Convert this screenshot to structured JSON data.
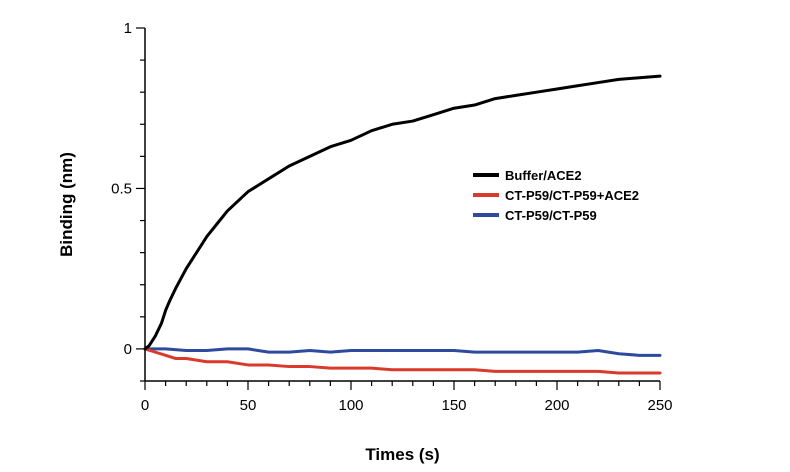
{
  "chart_data": {
    "type": "line",
    "title": "",
    "xlabel": "Times (s)",
    "ylabel": "Binding (nm)",
    "xlim": [
      0,
      250
    ],
    "ylim": [
      -0.1,
      1
    ],
    "x_ticks": [
      0,
      50,
      100,
      150,
      200,
      250
    ],
    "x_tick_labels": [
      "0",
      "50",
      "100",
      "150",
      "200",
      "250"
    ],
    "y_ticks": [
      0,
      0.5,
      1
    ],
    "y_tick_labels": [
      "0",
      "0.5",
      "1"
    ],
    "y_minor_step": 0.1,
    "x_minor_step": 10,
    "grid": false,
    "legend_position": "right",
    "series": [
      {
        "name": "Buffer/ACE2",
        "color": "#000000",
        "x": [
          0,
          2,
          5,
          8,
          10,
          12,
          15,
          20,
          25,
          30,
          35,
          40,
          45,
          50,
          55,
          60,
          70,
          80,
          90,
          100,
          110,
          120,
          130,
          140,
          150,
          160,
          170,
          180,
          190,
          200,
          210,
          220,
          230,
          240,
          250
        ],
        "values": [
          0,
          0.01,
          0.04,
          0.08,
          0.12,
          0.15,
          0.19,
          0.25,
          0.3,
          0.35,
          0.39,
          0.43,
          0.46,
          0.49,
          0.51,
          0.53,
          0.57,
          0.6,
          0.63,
          0.65,
          0.68,
          0.7,
          0.71,
          0.73,
          0.75,
          0.76,
          0.78,
          0.79,
          0.8,
          0.81,
          0.82,
          0.83,
          0.84,
          0.845,
          0.85
        ]
      },
      {
        "name": "CT-P59/CT-P59+ACE2",
        "color": "#d93a2b",
        "x": [
          0,
          5,
          10,
          15,
          20,
          30,
          40,
          50,
          60,
          70,
          80,
          90,
          100,
          110,
          120,
          130,
          140,
          150,
          160,
          170,
          180,
          190,
          200,
          210,
          220,
          230,
          240,
          250
        ],
        "values": [
          0,
          -0.01,
          -0.02,
          -0.03,
          -0.03,
          -0.04,
          -0.04,
          -0.05,
          -0.05,
          -0.055,
          -0.055,
          -0.06,
          -0.06,
          -0.06,
          -0.065,
          -0.065,
          -0.065,
          -0.065,
          -0.065,
          -0.07,
          -0.07,
          -0.07,
          -0.07,
          -0.07,
          -0.07,
          -0.075,
          -0.075,
          -0.075
        ]
      },
      {
        "name": "CT-P59/CT-P59",
        "color": "#2e4a9e",
        "x": [
          0,
          5,
          10,
          20,
          30,
          40,
          50,
          60,
          70,
          80,
          90,
          100,
          110,
          120,
          130,
          140,
          150,
          160,
          170,
          180,
          190,
          200,
          210,
          220,
          230,
          240,
          250
        ],
        "values": [
          0,
          0,
          0,
          -0.005,
          -0.005,
          0,
          0,
          -0.01,
          -0.01,
          -0.005,
          -0.01,
          -0.005,
          -0.005,
          -0.005,
          -0.005,
          -0.005,
          -0.005,
          -0.01,
          -0.01,
          -0.01,
          -0.01,
          -0.01,
          -0.01,
          -0.005,
          -0.015,
          -0.02,
          -0.02
        ]
      }
    ]
  }
}
